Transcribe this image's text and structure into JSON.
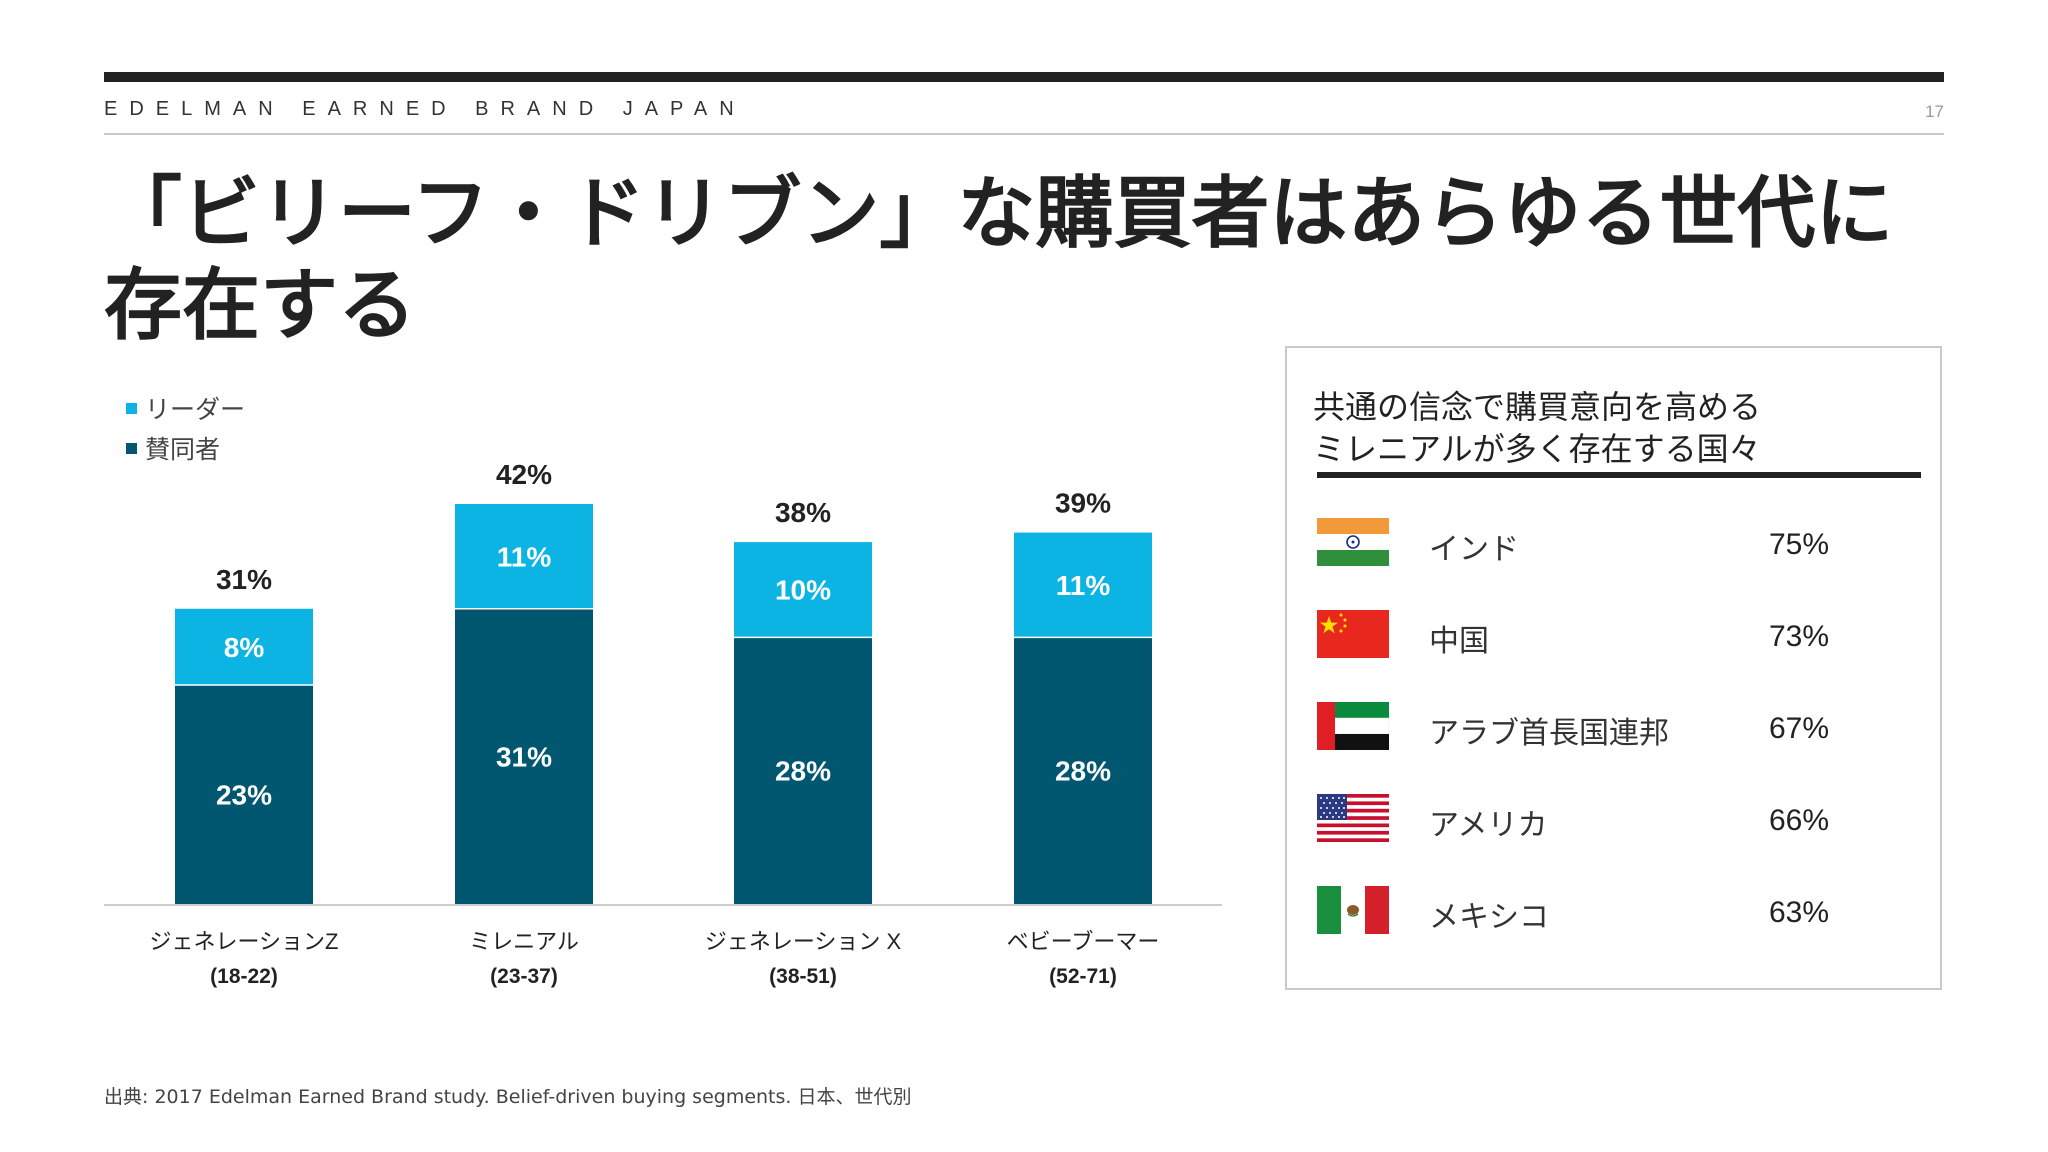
{
  "header": {
    "brand": "EDELMAN EARNED BRAND JAPAN",
    "page_number": "17"
  },
  "title_lines": [
    "「ビリーフ・ドリブン」な購買者はあらゆる世代に",
    "存在する"
  ],
  "legend": {
    "items": [
      {
        "label": "リーダー",
        "color": "#0cb4e4"
      },
      {
        "label": "賛同者",
        "color": "#015670"
      }
    ]
  },
  "chart_data": {
    "type": "bar",
    "stacked": true,
    "categories": [
      "ジェネレーションZ",
      "ミレニアル",
      "ジェネレーション X",
      "ベビーブーマー"
    ],
    "category_sublabels": [
      "(18-22)",
      "(23-37)",
      "(38-51)",
      "(52-71)"
    ],
    "series": [
      {
        "name": "賛同者",
        "values": [
          23,
          31,
          28,
          28
        ],
        "labels": [
          "23%",
          "31%",
          "28%",
          "28%"
        ],
        "color": "#015670"
      },
      {
        "name": "リーダー",
        "values": [
          8,
          11,
          10,
          11
        ],
        "labels": [
          "8%",
          "11%",
          "10%",
          "11%"
        ],
        "color": "#0cb4e4"
      }
    ],
    "totals": [
      31,
      42,
      38,
      39
    ],
    "total_labels": [
      "31%",
      "42%",
      "38%",
      "39%"
    ],
    "ylim": [
      0,
      42
    ],
    "grid": false
  },
  "panel": {
    "title_lines": [
      "共通の信念で購買意向を高める",
      "ミレニアルが多く存在する国々"
    ],
    "countries": [
      {
        "name": "インド",
        "value": "75%",
        "flag": "india-flag-icon"
      },
      {
        "name": "中国",
        "value": "73%",
        "flag": "china-flag-icon"
      },
      {
        "name": "アラブ首長国連邦",
        "value": "67%",
        "flag": "uae-flag-icon"
      },
      {
        "name": "アメリカ",
        "value": "66%",
        "flag": "usa-flag-icon"
      },
      {
        "name": "メキシコ",
        "value": "63%",
        "flag": "mexico-flag-icon"
      }
    ]
  },
  "source": "出典: 2017 Edelman Earned Brand study. Belief-driven buying segments. 日本、世代別"
}
